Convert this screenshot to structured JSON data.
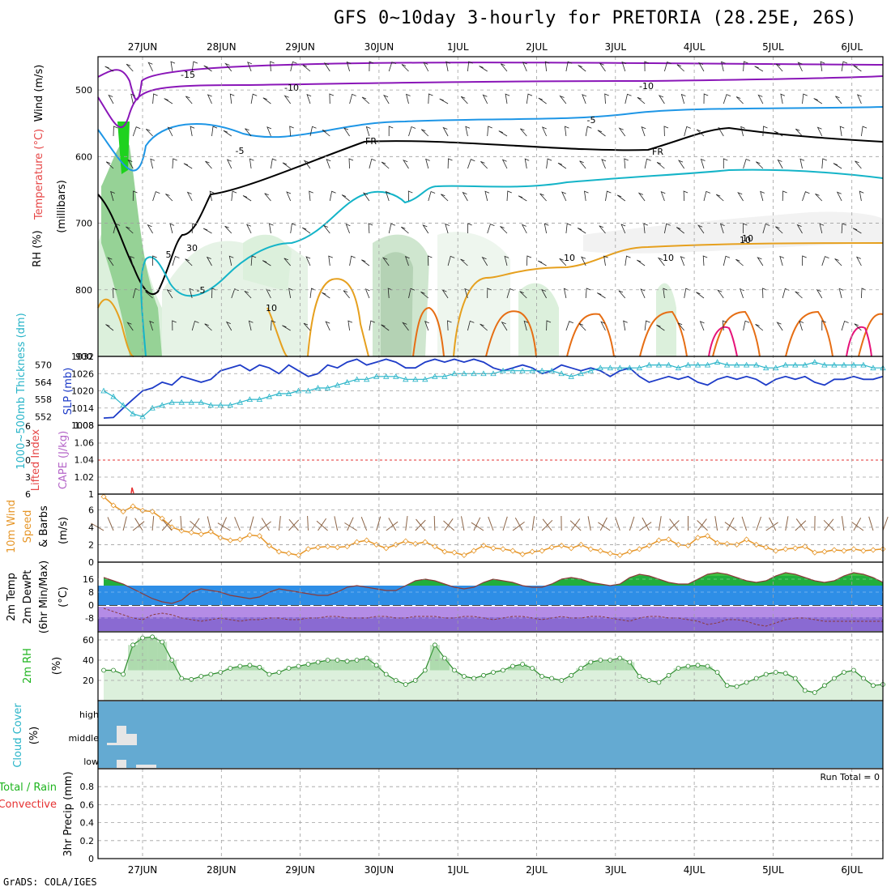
{
  "title": "GFS 0~10day 3-hourly for PRETORIA (28.25E, 26S)",
  "credit": "GrADS: COLA/IGES",
  "colors": {
    "frame": "#000000",
    "grid": "#a0a0a0",
    "t_minus15": "#8a16b8",
    "t_minus10": "#8a16b8",
    "t_minus5": "#1e96e6",
    "t_freeze": "#000000",
    "t_5": "#14b4c8",
    "t_10": "#e6a01e",
    "t_15": "#e66e14",
    "t_20": "#e6147a",
    "rh_light": "#dcf0dc",
    "rh_mid": "#96d296",
    "rh_dark": "#1ed21e",
    "slp": "#1e3cc8",
    "thickness": "#28b4c8",
    "lifted_index": "#e63232",
    "cape": "#b464c8",
    "wind10": "#e69628",
    "barb": "#8c6446",
    "temp_fill": "#2e8ee6",
    "temp_green": "#1eb41e",
    "dew_fill": "#b48ce6",
    "cloud": "#64aad2",
    "cloud_bar": "#e6e6e6",
    "precip_total": "#1eb41e",
    "precip_conv": "#e63232"
  },
  "dates": [
    "27JUN",
    "28JUN",
    "29JUN",
    "30JUN",
    "1JUL",
    "2JUL",
    "3JUL",
    "4JUL",
    "5JUL",
    "6JUL"
  ],
  "panels": {
    "upper": {
      "ylabel_wind": "Wind (m/s)",
      "ylabel_temp": "Temperature (°C)",
      "ylabel_rh": "RH (%)",
      "ylabel_p": "(millibars)",
      "yticks": [
        "500",
        "600",
        "700",
        "800",
        "900"
      ],
      "contour_labels": [
        "-15",
        "-10",
        "-10",
        "-5",
        "-5",
        "-5",
        "FR",
        "FR",
        "5",
        "10",
        "10",
        "10",
        "30",
        "10",
        "10"
      ]
    },
    "slp": {
      "ylabel": "1000~500mb Thickness (dm)",
      "ylabel2": "SLP (mb)",
      "yticks_left": [
        "570",
        "564",
        "558",
        "552"
      ],
      "yticks_right": [
        "1032",
        "1026",
        "1020",
        "1014",
        "1008"
      ]
    },
    "li": {
      "ylabel": "Lifted Index",
      "ylabel2": "CAPE (J/kg)",
      "yticks_left": [
        "-6",
        "-3",
        "0",
        "3",
        "6"
      ],
      "yticks_right": [
        "1.08",
        "1.06",
        "1.04",
        "1.02",
        "1"
      ]
    },
    "wind10": {
      "ylabel": "10m Wind Speed & Barbs",
      "unit": "(m/s)",
      "yticks": [
        "6",
        "4",
        "2",
        "0"
      ]
    },
    "temp2m": {
      "ylabel": "2m Temp 2m DewPt (6hr Min/Max)",
      "unit": "(°C)",
      "yticks": [
        "16",
        "8",
        "0",
        "-8"
      ]
    },
    "rh2m": {
      "ylabel": "2m RH",
      "unit": "(%)",
      "yticks": [
        "60",
        "40",
        "20"
      ]
    },
    "cloud": {
      "ylabel": "Cloud Cover",
      "unit": "(%)",
      "levels": [
        "high",
        "middle",
        "low"
      ]
    },
    "precip": {
      "ylabel_a": "Total / Rain",
      "ylabel_b": "Convective",
      "ylabel_c": "3hr Precip (mm)",
      "yticks": [
        "0.8",
        "0.6",
        "0.4",
        "0.2",
        "0"
      ],
      "run_total": "Run Total = 0"
    }
  },
  "chart_data": [
    {
      "type": "line",
      "title": "Thickness 1000~500mb (dm) / SLP (mb)",
      "x": [
        0,
        1,
        2,
        3,
        4,
        5,
        6,
        7,
        8,
        9,
        10,
        11,
        12,
        13,
        14,
        15,
        16,
        17,
        18,
        19,
        20,
        21,
        22,
        23,
        24,
        25,
        26,
        27,
        28,
        29,
        30,
        31,
        32,
        33,
        34,
        35,
        36,
        37,
        38,
        39,
        40,
        41,
        42,
        43,
        44,
        45,
        46,
        47,
        48,
        49,
        50,
        51,
        52,
        53,
        54,
        55,
        56,
        57,
        58,
        59,
        60,
        61,
        62,
        63,
        64,
        65,
        66,
        67,
        68,
        69,
        70,
        71,
        72,
        73,
        74,
        75,
        76,
        77,
        78,
        79,
        80
      ],
      "series": [
        {
          "name": "SLP",
          "values": [
            1010.5,
            1010.7,
            1014,
            1017,
            1020,
            1021,
            1023,
            1022,
            1025,
            1024,
            1023,
            1024,
            1027,
            1028,
            1029,
            1027,
            1029,
            1028,
            1026,
            1029,
            1027,
            1025,
            1026,
            1029,
            1028,
            1030,
            1031,
            1029,
            1030,
            1031,
            1030,
            1028,
            1028,
            1030,
            1031,
            1030,
            1031,
            1030,
            1031,
            1030,
            1028,
            1027,
            1028,
            1029,
            1028,
            1026,
            1027,
            1029,
            1028,
            1027,
            1028,
            1027,
            1025,
            1027,
            1028,
            1025,
            1023,
            1024,
            1025,
            1024,
            1025,
            1023,
            1022,
            1024,
            1025,
            1024,
            1025,
            1024,
            1022,
            1024,
            1025,
            1024,
            1025,
            1023,
            1022,
            1024,
            1024,
            1025,
            1024,
            1024,
            1025
          ]
        },
        {
          "name": "Thickness",
          "values": [
            561,
            559,
            556,
            553,
            552,
            555,
            556,
            557,
            557,
            557,
            557,
            556,
            556,
            556,
            557,
            558,
            558,
            559,
            560,
            560,
            561,
            561,
            562,
            562,
            563,
            564,
            565,
            565,
            566,
            566,
            566,
            565,
            565,
            565,
            566,
            566,
            567,
            567,
            567,
            567,
            567,
            568,
            568,
            568,
            568,
            568,
            568,
            567,
            566,
            567,
            568,
            569,
            569,
            569,
            569,
            569,
            570,
            570,
            570,
            569,
            570,
            570,
            570,
            571,
            570,
            570,
            570,
            570,
            569,
            569,
            570,
            570,
            570,
            571,
            570,
            570,
            570,
            570,
            570,
            569,
            569
          ]
        }
      ]
    },
    {
      "type": "line",
      "title": "10m Wind Speed (m/s)",
      "x": [
        0,
        1,
        2,
        3,
        4,
        5,
        6,
        7,
        8,
        9,
        10,
        11,
        12,
        13,
        14,
        15,
        16,
        17,
        18,
        19,
        20,
        21,
        22,
        23,
        24,
        25,
        26,
        27,
        28,
        29,
        30,
        31,
        32,
        33,
        34,
        35,
        36,
        37,
        38,
        39,
        40,
        41,
        42,
        43,
        44,
        45,
        46,
        47,
        48,
        49,
        50,
        51,
        52,
        53,
        54,
        55,
        56,
        57,
        58,
        59,
        60,
        61,
        62,
        63,
        64,
        65,
        66,
        67,
        68,
        69,
        70,
        71,
        72,
        73,
        74,
        75,
        76,
        77,
        78,
        79,
        80
      ],
      "series": [
        {
          "name": "speed",
          "values": [
            7.5,
            6.5,
            5.8,
            6.4,
            5.9,
            5.8,
            5.0,
            4.0,
            3.6,
            3.4,
            3.2,
            3.5,
            2.8,
            2.5,
            2.6,
            3.1,
            3.0,
            1.9,
            1.2,
            1.0,
            0.8,
            1.5,
            1.7,
            1.8,
            1.7,
            1.8,
            2.3,
            2.5,
            2.0,
            1.6,
            2.0,
            2.4,
            2.1,
            2.3,
            1.8,
            1.2,
            1.1,
            0.8,
            1.3,
            1.9,
            1.6,
            1.5,
            1.3,
            0.9,
            1.2,
            1.3,
            1.7,
            1.9,
            1.6,
            2.0,
            1.5,
            1.3,
            1.0,
            0.8,
            1.2,
            1.5,
            1.9,
            2.5,
            2.6,
            2.0,
            1.9,
            2.8,
            3.0,
            2.2,
            2.1,
            2.0,
            2.6,
            2.0,
            1.7,
            1.3,
            1.5,
            1.6,
            1.8,
            1.1,
            1.2,
            1.4,
            1.3,
            1.5,
            1.3,
            1.4,
            1.5
          ]
        }
      ]
    },
    {
      "type": "area",
      "title": "2m Temp / 2m DewPt (°C)",
      "x": [
        0,
        1,
        2,
        3,
        4,
        5,
        6,
        7,
        8,
        9,
        10,
        11,
        12,
        13,
        14,
        15,
        16,
        17,
        18,
        19,
        20,
        21,
        22,
        23,
        24,
        25,
        26,
        27,
        28,
        29,
        30,
        31,
        32,
        33,
        34,
        35,
        36,
        37,
        38,
        39,
        40,
        41,
        42,
        43,
        44,
        45,
        46,
        47,
        48,
        49,
        50,
        51,
        52,
        53,
        54,
        55,
        56,
        57,
        58,
        59,
        60,
        61,
        62,
        63,
        64,
        65,
        66,
        67,
        68,
        69,
        70,
        71,
        72,
        73,
        74,
        75,
        76,
        77,
        78,
        79,
        80
      ],
      "series": [
        {
          "name": "temp",
          "values": [
            17,
            15,
            13,
            10,
            7,
            4,
            2,
            1,
            3,
            8,
            10,
            9,
            8,
            6,
            5,
            4,
            5,
            8,
            10,
            9,
            8,
            7,
            6,
            6,
            8,
            11,
            12,
            11,
            10,
            9,
            9,
            12,
            15,
            16,
            15,
            13,
            11,
            10,
            11,
            14,
            16,
            15,
            14,
            12,
            11,
            11,
            13,
            16,
            17,
            16,
            14,
            13,
            12,
            13,
            17,
            19,
            18,
            16,
            14,
            13,
            13,
            16,
            19,
            20,
            19,
            17,
            15,
            14,
            15,
            18,
            20,
            19,
            17,
            15,
            14,
            15,
            18,
            20,
            19,
            17,
            14
          ]
        },
        {
          "name": "dewpt",
          "values": [
            -2,
            -4,
            -6,
            -8,
            -9,
            -6,
            -5,
            -6,
            -8,
            -9,
            -10,
            -9,
            -8,
            -9,
            -10,
            -9,
            -9,
            -8,
            -8,
            -9,
            -9,
            -8,
            -8,
            -7,
            -7,
            -8,
            -8,
            -8,
            -7,
            -7,
            -8,
            -8,
            -7,
            -7,
            -7,
            -8,
            -8,
            -7,
            -7,
            -8,
            -9,
            -8,
            -7,
            -7,
            -8,
            -9,
            -8,
            -7,
            -8,
            -8,
            -7,
            -7,
            -8,
            -9,
            -10,
            -8,
            -7,
            -7,
            -8,
            -8,
            -9,
            -10,
            -12,
            -11,
            -9,
            -9,
            -10,
            -12,
            -13,
            -11,
            -9,
            -8,
            -8,
            -9,
            -10,
            -10,
            -10,
            -10,
            -10,
            -10,
            -10
          ]
        }
      ]
    },
    {
      "type": "area",
      "title": "2m RH (%)",
      "x": [
        0,
        1,
        2,
        3,
        4,
        5,
        6,
        7,
        8,
        9,
        10,
        11,
        12,
        13,
        14,
        15,
        16,
        17,
        18,
        19,
        20,
        21,
        22,
        23,
        24,
        25,
        26,
        27,
        28,
        29,
        30,
        31,
        32,
        33,
        34,
        35,
        36,
        37,
        38,
        39,
        40,
        41,
        42,
        43,
        44,
        45,
        46,
        47,
        48,
        49,
        50,
        51,
        52,
        53,
        54,
        55,
        56,
        57,
        58,
        59,
        60,
        61,
        62,
        63,
        64,
        65,
        66,
        67,
        68,
        69,
        70,
        71,
        72,
        73,
        74,
        75,
        76,
        77,
        78,
        79,
        80
      ],
      "series": [
        {
          "name": "rh",
          "values": [
            30,
            30,
            26,
            55,
            62,
            63,
            58,
            40,
            22,
            21,
            24,
            26,
            28,
            32,
            34,
            35,
            33,
            26,
            28,
            32,
            34,
            36,
            38,
            40,
            40,
            39,
            40,
            42,
            35,
            26,
            20,
            16,
            20,
            30,
            55,
            42,
            30,
            24,
            22,
            25,
            28,
            30,
            34,
            36,
            32,
            24,
            22,
            20,
            25,
            32,
            38,
            40,
            40,
            42,
            38,
            24,
            20,
            18,
            25,
            32,
            34,
            35,
            34,
            28,
            15,
            14,
            18,
            22,
            26,
            28,
            27,
            22,
            10,
            8,
            15,
            22,
            28,
            30,
            22,
            15,
            16
          ]
        }
      ]
    },
    {
      "type": "bar",
      "title": "3hr Precip (mm)",
      "categories": [
        "27JUN",
        "28JUN",
        "29JUN",
        "30JUN",
        "1JUL",
        "2JUL",
        "3JUL",
        "4JUL",
        "5JUL",
        "6JUL"
      ],
      "series": [
        {
          "name": "Total / Rain",
          "values": [
            0,
            0,
            0,
            0,
            0,
            0,
            0,
            0,
            0,
            0
          ]
        },
        {
          "name": "Convective",
          "values": [
            0,
            0,
            0,
            0,
            0,
            0,
            0,
            0,
            0,
            0
          ]
        }
      ],
      "ylim": [
        0,
        1
      ]
    }
  ]
}
